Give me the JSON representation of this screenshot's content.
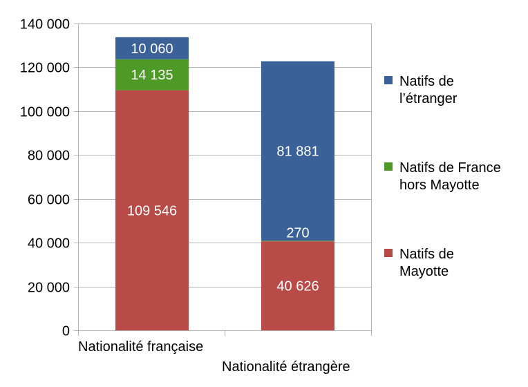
{
  "chart_data": {
    "type": "bar",
    "stacked": true,
    "categories": [
      "Nationalité française",
      "Nationalité étrangère"
    ],
    "series": [
      {
        "name": "Natifs de Mayotte",
        "color": "#b84a47",
        "values": [
          109546,
          40626
        ],
        "labels": [
          "109 546",
          "40 626"
        ]
      },
      {
        "name": "Natifs de France hors Mayotte",
        "color": "#4e9a27",
        "values": [
          14135,
          270
        ],
        "labels": [
          "14 135",
          "270"
        ]
      },
      {
        "name": "Natifs de l’étranger",
        "color": "#3b6298",
        "values": [
          10060,
          81881
        ],
        "labels": [
          "10 060",
          "81 881"
        ]
      }
    ],
    "yticks": [
      {
        "value": 0,
        "label": "0"
      },
      {
        "value": 20000,
        "label": "20 000"
      },
      {
        "value": 40000,
        "label": "40 000"
      },
      {
        "value": 60000,
        "label": "60 000"
      },
      {
        "value": 80000,
        "label": "80 000"
      },
      {
        "value": 100000,
        "label": "100 000"
      },
      {
        "value": 120000,
        "label": "120 000"
      },
      {
        "value": 140000,
        "label": "140 000"
      }
    ],
    "ylim": [
      0,
      140000
    ],
    "grid": true,
    "legend": {
      "placement": "right",
      "items": [
        {
          "lines": [
            "Natifs de",
            "l’étranger"
          ],
          "color": "#3b6298"
        },
        {
          "lines": [
            "Natifs de France",
            "hors Mayotte"
          ],
          "color": "#4e9a27"
        },
        {
          "lines": [
            "Natifs de",
            "Mayotte"
          ],
          "color": "#b84a47"
        }
      ]
    },
    "title": "",
    "xlabel": "",
    "ylabel": ""
  }
}
